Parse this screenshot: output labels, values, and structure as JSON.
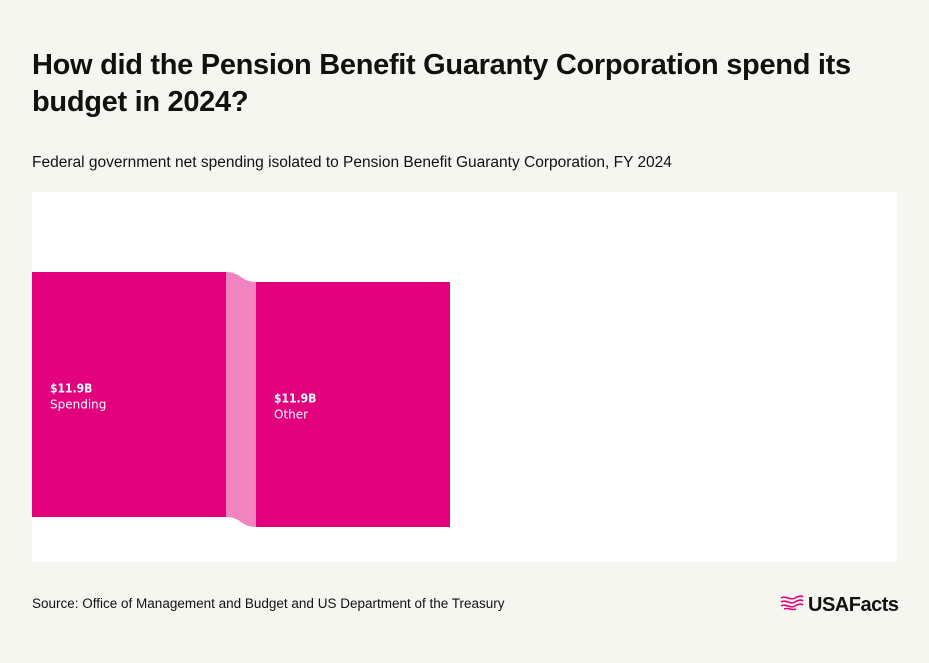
{
  "header": {
    "title": "How did the Pension Benefit Guaranty Corporation spend its budget in 2024?",
    "subtitle": "Federal government net spending isolated to Pension Benefit Guaranty Corporation, FY 2024"
  },
  "footer": {
    "source": "Source: Office of Management and Budget and US Department of the Treasury",
    "logo_text": "USAFacts"
  },
  "colors": {
    "node": "#e3007d",
    "link": "#f184c0",
    "node_label": "#ffffff",
    "panel": "#ffffff",
    "background": "#f6f6f1"
  },
  "chart_data": {
    "type": "sankey",
    "title": "",
    "nodes": [
      {
        "id": "spending",
        "value_label": "$11.9B",
        "name": "Spending",
        "value": 11.9,
        "column": 0
      },
      {
        "id": "other",
        "value_label": "$11.9B",
        "name": "Other",
        "value": 11.9,
        "column": 1
      }
    ],
    "links": [
      {
        "source": "spending",
        "target": "other",
        "value": 11.9
      }
    ],
    "units": "billions of dollars"
  }
}
